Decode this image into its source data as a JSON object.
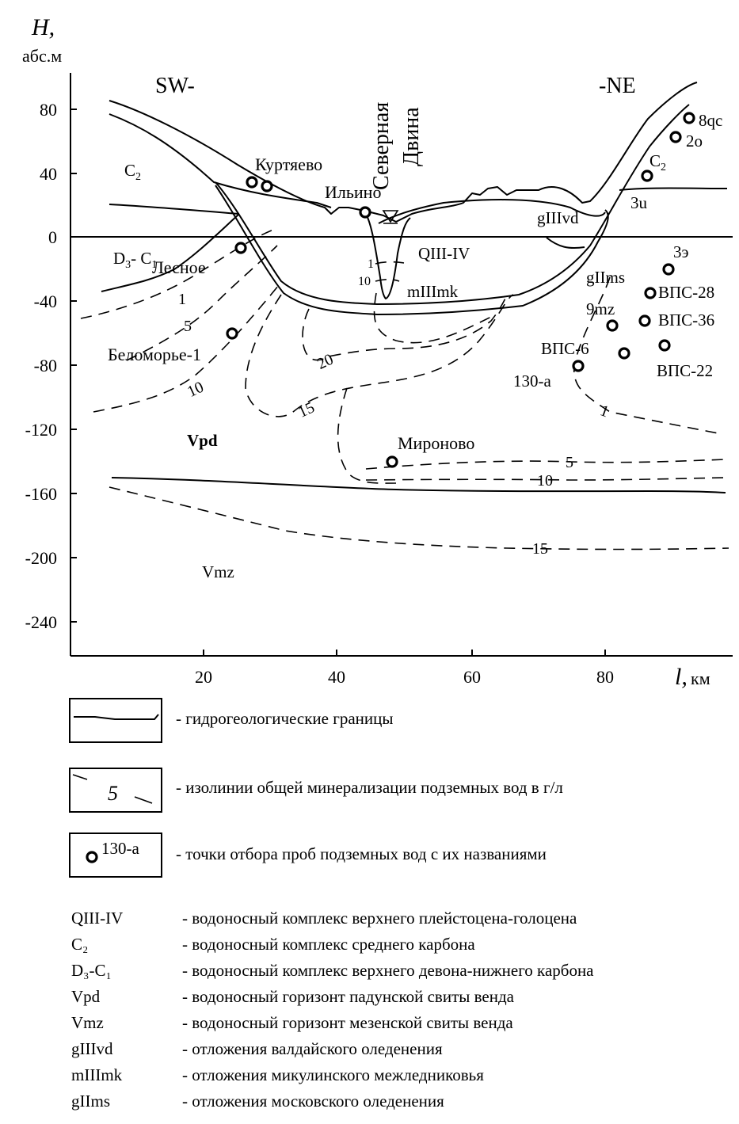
{
  "axes": {
    "y_title": "H,",
    "y_unit": "абс.м",
    "y_ticks": [
      "80",
      "40",
      "0",
      "-40",
      "-80",
      "-120",
      "-160",
      "-200",
      "-240"
    ],
    "x_ticks": [
      "20",
      "40",
      "60",
      "80"
    ],
    "x_title": "l,",
    "x_unit": "км"
  },
  "directions": {
    "left": "SW-",
    "right": "-NE"
  },
  "river": {
    "line1": "Северная",
    "line2": "Двина"
  },
  "places": {
    "kurtyaevo": "Куртяево",
    "ilyino": "Ильино",
    "lesnoe": "Лесное",
    "belomorye": "Беломорье-1",
    "mironovo": "Мироново"
  },
  "units": {
    "c2_left_main": "C",
    "c2_left_sub": "2",
    "c2_right_main": "C",
    "c2_right_sub": "2",
    "d3c1_a": "D",
    "d3c1_b": "3",
    "d3c1_c": "- C",
    "d3c1_d": "1",
    "q": "QIII-IV",
    "mk": "mIIImk",
    "vd": "gIIIvd",
    "ms": "gIIms",
    "vpd": "Vpd",
    "vmz": "Vmz"
  },
  "isolines": {
    "left_1": "1",
    "left_5": "5",
    "left_10": "10",
    "c15": "15",
    "c20": "20",
    "river_1": "1",
    "river_10": "10",
    "right_1": "1",
    "right_5": "5",
    "right_10": "10",
    "bottom_15": "15"
  },
  "wells": {
    "w8qc": "8qc",
    "w2o": "2o",
    "w3u": "3u",
    "w3e": "3э",
    "vps28": "ВПС-28",
    "vps36": "ВПС-36",
    "vps22": "ВПС-22",
    "vps6": "ВПС-6",
    "w9mz": "9mz",
    "w130a": "130-a"
  },
  "legend": {
    "boundary_text": "- гидрогеологические границы",
    "isoline_sample": "5",
    "isoline_text": "- изолинии общей минерализации подземных вод в г/л",
    "point_sample": "130-a",
    "point_text": "- точки отбора проб подземных вод с их названиями",
    "units": [
      {
        "code": "QIII-IV",
        "desc": "- водоносный комплекс верхнего плейстоцена-голоцена"
      },
      {
        "code": "C₂",
        "desc": "- водоносный комплекс среднего карбона"
      },
      {
        "code": "D₃-C₁",
        "desc": "- водоносный комплекс верхнего девона-нижнего карбона"
      },
      {
        "code": "Vpd",
        "desc": "- водоносный горизонт падунской свиты венда"
      },
      {
        "code": "Vmz",
        "desc": "- водоносный горизонт мезенской свиты венда"
      },
      {
        "code": "gIIIvd",
        "desc": "- отложения валдайского оледенения"
      },
      {
        "code": "mIIImk",
        "desc": "- отложения микулинского межледниковья"
      },
      {
        "code": "gIIms",
        "desc": "- отложения московского оледенения"
      }
    ]
  }
}
